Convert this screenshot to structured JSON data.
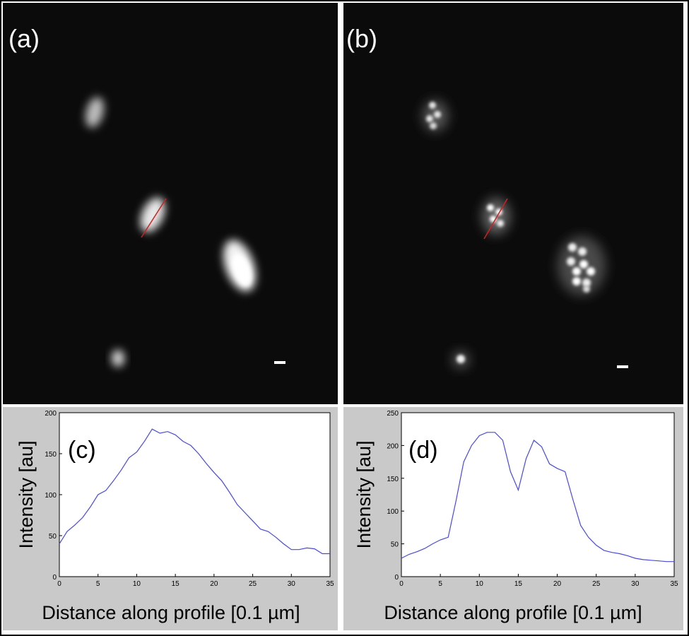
{
  "panels": {
    "a": {
      "label": "(a)"
    },
    "b": {
      "label": "(b)"
    }
  },
  "colors": {
    "profile_line": "#d02020",
    "plot_line": "#4a4ad8",
    "plot_background": "#c9c9c9",
    "micrograph_background": "#0b0b0b"
  },
  "chart_data": [
    {
      "type": "line",
      "panel_label": "(c)",
      "title": "",
      "xlabel": "Distance along profile [0.1 µm]",
      "ylabel": "Intensity [au]",
      "xlim": [
        0,
        35
      ],
      "ylim": [
        0,
        200
      ],
      "xticks": [
        0,
        5,
        10,
        15,
        20,
        25,
        30,
        35
      ],
      "yticks": [
        0,
        50,
        100,
        150,
        200
      ],
      "grid": false,
      "series": [
        {
          "x": [
            0,
            1,
            2,
            3,
            4,
            5,
            6,
            7,
            8,
            9,
            10,
            11,
            12,
            13,
            14,
            15,
            16,
            17,
            18,
            19,
            20,
            21,
            22,
            23,
            24,
            25,
            26,
            27,
            28,
            29,
            30,
            31,
            32,
            33,
            34,
            35
          ],
          "values": [
            40,
            55,
            63,
            72,
            85,
            100,
            105,
            117,
            130,
            145,
            152,
            165,
            180,
            175,
            177,
            173,
            165,
            160,
            150,
            138,
            127,
            117,
            103,
            88,
            78,
            68,
            58,
            55,
            48,
            40,
            33,
            33,
            35,
            34,
            28,
            28
          ]
        }
      ]
    },
    {
      "type": "line",
      "panel_label": "(d)",
      "title": "",
      "xlabel": "Distance along profile [0.1 µm]",
      "ylabel": "Intensity [au]",
      "xlim": [
        0,
        35
      ],
      "ylim": [
        0,
        250
      ],
      "xticks": [
        0,
        5,
        10,
        15,
        20,
        25,
        30,
        35
      ],
      "yticks": [
        0,
        50,
        100,
        150,
        200,
        250
      ],
      "grid": false,
      "series": [
        {
          "x": [
            0,
            1,
            2,
            3,
            4,
            5,
            6,
            7,
            8,
            9,
            10,
            11,
            12,
            13,
            14,
            15,
            16,
            17,
            18,
            19,
            20,
            21,
            22,
            23,
            24,
            25,
            26,
            27,
            28,
            29,
            30,
            31,
            32,
            33,
            34,
            35
          ],
          "values": [
            28,
            34,
            38,
            43,
            50,
            56,
            60,
            115,
            175,
            200,
            215,
            220,
            220,
            208,
            160,
            132,
            180,
            208,
            198,
            172,
            165,
            160,
            118,
            78,
            60,
            48,
            40,
            37,
            35,
            32,
            28,
            26,
            25,
            24,
            23,
            23
          ]
        }
      ]
    }
  ]
}
